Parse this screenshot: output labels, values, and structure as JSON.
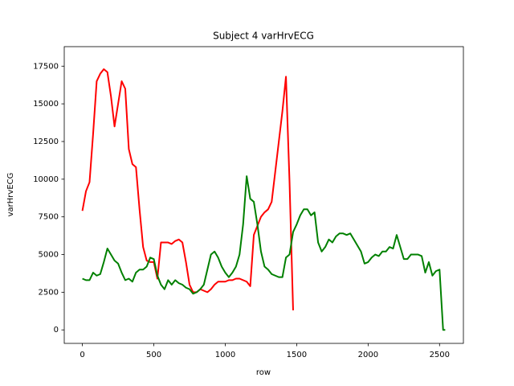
{
  "chart_data": {
    "type": "line",
    "title": "Subject 4 varHrvECG",
    "x_label": "row",
    "y_label": "varHrvECG",
    "x": [
      0,
      25,
      50,
      75,
      100,
      125,
      150,
      175,
      200,
      225,
      250,
      275,
      300,
      325,
      350,
      375,
      400,
      425,
      450,
      475,
      500,
      525,
      550,
      575,
      600,
      625,
      650,
      675,
      700,
      725,
      750,
      775,
      800,
      825,
      850,
      875,
      900,
      925,
      950,
      975,
      1000,
      1025,
      1050,
      1075,
      1100,
      1125,
      1150,
      1175,
      1200,
      1225,
      1250,
      1275,
      1300,
      1325,
      1350,
      1375,
      1400,
      1425,
      1450,
      1475,
      1500,
      1525,
      1550,
      1575,
      1600,
      1625,
      1650,
      1675,
      1700,
      1725,
      1750,
      1775,
      1800,
      1825,
      1850,
      1875,
      1900,
      1925,
      1950,
      1975,
      2000,
      2025,
      2050,
      2075,
      2100,
      2125,
      2150,
      2175,
      2200,
      2225,
      2250,
      2275,
      2300,
      2325,
      2350,
      2375,
      2400,
      2425,
      2450,
      2475,
      2500,
      2525,
      2540
    ],
    "series": [
      {
        "color": "#ff0000",
        "values": [
          7900,
          9200,
          9800,
          13000,
          16500,
          17000,
          17300,
          17100,
          15500,
          13500,
          15000,
          16500,
          16000,
          12000,
          11000,
          10800,
          8000,
          5500,
          4600,
          4500,
          4500,
          3400,
          5800,
          5800,
          5800,
          5700,
          5900,
          6000,
          5800,
          4500,
          3000,
          2500,
          2500,
          2700,
          2600,
          2500,
          2700,
          3000,
          3200,
          3200,
          3200,
          3300,
          3300,
          3400,
          3400,
          3300,
          3200,
          2900,
          6300,
          6900,
          7500,
          7800,
          8000,
          8500,
          10500,
          12500,
          14500,
          16800,
          9800,
          1300,
          null,
          null,
          null,
          null,
          null,
          null,
          null,
          null,
          null,
          null,
          null,
          null,
          null,
          null,
          null,
          null,
          null,
          null,
          null,
          null,
          null,
          null,
          null,
          null,
          null,
          null,
          null,
          null,
          null,
          null,
          null,
          null,
          null,
          null,
          null,
          null,
          null,
          null,
          null,
          null,
          null,
          null,
          null
        ]
      },
      {
        "color": "#008000",
        "values": [
          3400,
          3300,
          3300,
          3800,
          3600,
          3700,
          4500,
          5400,
          5000,
          4600,
          4400,
          3800,
          3300,
          3400,
          3200,
          3800,
          4000,
          4000,
          4200,
          4800,
          4700,
          3600,
          3000,
          2700,
          3300,
          3000,
          3300,
          3100,
          3000,
          2800,
          2700,
          2400,
          2500,
          2700,
          3000,
          4000,
          5000,
          5200,
          4800,
          4200,
          3800,
          3500,
          3800,
          4200,
          5000,
          7000,
          10200,
          8700,
          8500,
          7000,
          5200,
          4200,
          4000,
          3700,
          3600,
          3500,
          3500,
          4800,
          5000,
          6500,
          7000,
          7600,
          8000,
          8000,
          7600,
          7800,
          5800,
          5200,
          5500,
          6000,
          5800,
          6200,
          6400,
          6400,
          6300,
          6400,
          6000,
          5600,
          5200,
          4400,
          4500,
          4800,
          5000,
          4900,
          5200,
          5200,
          5500,
          5400,
          6300,
          5500,
          4700,
          4700,
          5000,
          5000,
          5000,
          4900,
          3800,
          4500,
          3600,
          3900,
          4000,
          0,
          0
        ]
      }
    ],
    "xlim": [
      -127,
      2667
    ],
    "xticks": [
      0,
      500,
      1000,
      1500,
      2000,
      2500
    ],
    "ylim": [
      -895,
      18795
    ],
    "yticks": [
      0,
      2500,
      5000,
      7500,
      10000,
      12500,
      15000,
      17500
    ],
    "grid": false
  }
}
